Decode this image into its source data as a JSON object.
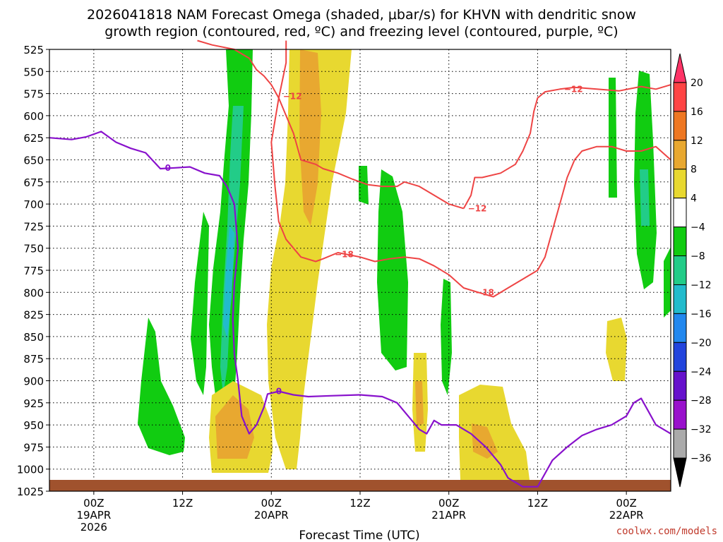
{
  "chart_data": {
    "type": "heatmap",
    "title_line1": "2026041818 NAM Forecast Omega (shaded, μbar/s) for KHVN with dendritic snow",
    "title_line2": "growth region (contoured, red, ºC) and freezing level (contoured, purple, ºC)",
    "xlabel": "Forecast Time (UTC)",
    "credit": "coolwx.com/models",
    "x_range_hours": [
      0,
      84
    ],
    "y_levels_hpa": [
      "525",
      "550",
      "575",
      "600",
      "625",
      "650",
      "675",
      "700",
      "725",
      "750",
      "775",
      "800",
      "825",
      "850",
      "875",
      "900",
      "925",
      "950",
      "975",
      "1000",
      "1025"
    ],
    "x_ticks": [
      {
        "hour": 6,
        "label": "00Z",
        "sub1": "19APR",
        "sub2": "2026"
      },
      {
        "hour": 18,
        "label": "12Z",
        "sub1": "",
        "sub2": ""
      },
      {
        "hour": 30,
        "label": "00Z",
        "sub1": "20APR",
        "sub2": ""
      },
      {
        "hour": 42,
        "label": "12Z",
        "sub1": "",
        "sub2": ""
      },
      {
        "hour": 54,
        "label": "00Z",
        "sub1": "21APR",
        "sub2": ""
      },
      {
        "hour": 66,
        "label": "12Z",
        "sub1": "",
        "sub2": ""
      },
      {
        "hour": 78,
        "label": "00Z",
        "sub1": "22APR",
        "sub2": ""
      }
    ],
    "colorbar": {
      "labels": [
        "20",
        "16",
        "12",
        "8",
        "4",
        "−4",
        "−8",
        "−12",
        "−16",
        "−20",
        "−24",
        "−28",
        "−32",
        "−36"
      ],
      "colors": [
        "#ff3366",
        "#ff4444",
        "#ee7722",
        "#e8a830",
        "#e8d830",
        "#ffffff",
        "#11cc11",
        "#22cc88",
        "#22bbcc",
        "#2288ee",
        "#2244dd",
        "#6611cc",
        "#9911cc",
        "#aaaaaa",
        "#000000"
      ]
    },
    "contour_labels": {
      "snow_growth": [
        "−12",
        "−18",
        "−12",
        "−18",
        "−12"
      ],
      "freezing": [
        "0",
        "0"
      ]
    },
    "contours": {
      "freezing_level": [
        [
          0,
          625
        ],
        [
          3,
          627
        ],
        [
          5,
          624
        ],
        [
          7,
          618
        ],
        [
          9,
          630
        ],
        [
          11,
          637
        ],
        [
          13,
          642
        ],
        [
          15,
          660
        ],
        [
          17,
          659
        ],
        [
          19,
          658
        ],
        [
          21,
          665
        ],
        [
          23,
          668
        ],
        [
          24,
          680
        ],
        [
          25,
          700
        ],
        [
          25.5,
          750
        ],
        [
          25,
          790
        ],
        [
          24.8,
          830
        ],
        [
          25,
          870
        ],
        [
          25.5,
          900
        ],
        [
          26,
          940
        ],
        [
          27,
          960
        ],
        [
          28,
          950
        ],
        [
          29,
          930
        ],
        [
          29.5,
          915
        ],
        [
          31,
          912
        ],
        [
          33,
          916
        ],
        [
          35,
          918
        ],
        [
          38,
          917
        ],
        [
          42,
          916
        ],
        [
          45,
          918
        ],
        [
          47,
          925
        ],
        [
          49,
          945
        ],
        [
          50,
          955
        ],
        [
          51,
          960
        ],
        [
          52,
          945
        ],
        [
          53,
          950
        ],
        [
          55,
          950
        ],
        [
          57,
          960
        ],
        [
          59,
          975
        ],
        [
          61,
          995
        ],
        [
          62,
          1010
        ],
        [
          64,
          1020
        ],
        [
          66,
          1020
        ],
        [
          67,
          1005
        ],
        [
          68,
          990
        ],
        [
          70,
          975
        ],
        [
          72,
          962
        ],
        [
          74,
          955
        ],
        [
          76,
          950
        ],
        [
          78,
          940
        ],
        [
          79,
          925
        ],
        [
          80,
          920
        ],
        [
          81,
          935
        ],
        [
          82,
          950
        ],
        [
          84,
          960
        ]
      ],
      "snow_growth_m12_upper": [
        [
          20,
          515
        ],
        [
          22,
          520
        ],
        [
          25,
          525
        ],
        [
          27,
          535
        ],
        [
          28,
          548
        ],
        [
          29,
          555
        ],
        [
          30,
          565
        ],
        [
          31,
          580
        ],
        [
          32,
          600
        ],
        [
          33,
          620
        ],
        [
          34,
          650
        ],
        [
          36,
          655
        ],
        [
          37,
          660
        ],
        [
          39,
          665
        ],
        [
          41,
          672
        ],
        [
          43,
          678
        ],
        [
          45,
          680
        ],
        [
          47,
          680
        ],
        [
          48,
          675
        ],
        [
          50,
          680
        ],
        [
          52,
          690
        ],
        [
          54,
          700
        ],
        [
          56,
          705
        ]
      ],
      "snow_growth_m12_lower": [
        [
          32,
          515
        ],
        [
          32,
          540
        ],
        [
          31,
          580
        ],
        [
          30,
          630
        ],
        [
          30.5,
          680
        ],
        [
          31,
          720
        ],
        [
          32,
          740
        ],
        [
          34,
          760
        ],
        [
          36,
          765
        ],
        [
          37,
          762
        ],
        [
          39,
          755
        ],
        [
          42,
          760
        ],
        [
          44,
          765
        ],
        [
          46,
          762
        ],
        [
          48,
          760
        ],
        [
          50,
          762
        ],
        [
          52,
          770
        ],
        [
          54,
          780
        ],
        [
          56,
          795
        ],
        [
          58,
          800
        ],
        [
          60,
          805
        ],
        [
          62,
          795
        ],
        [
          64,
          785
        ],
        [
          66,
          775
        ],
        [
          67,
          760
        ],
        [
          68,
          730
        ],
        [
          69,
          700
        ],
        [
          70,
          670
        ],
        [
          71,
          650
        ],
        [
          72,
          640
        ],
        [
          74,
          635
        ],
        [
          76,
          635
        ],
        [
          78,
          640
        ],
        [
          80,
          640
        ],
        [
          82,
          635
        ],
        [
          84,
          650
        ]
      ],
      "snow_growth_m18": [
        [
          56,
          705
        ],
        [
          57,
          690
        ],
        [
          57.5,
          670
        ],
        [
          58.5,
          670
        ],
        [
          61,
          665
        ],
        [
          63,
          655
        ],
        [
          64,
          640
        ],
        [
          65,
          620
        ],
        [
          65.5,
          595
        ],
        [
          66,
          580
        ],
        [
          67,
          573
        ],
        [
          69,
          570
        ],
        [
          71,
          568
        ],
        [
          74,
          570
        ],
        [
          77,
          572
        ],
        [
          80,
          567
        ],
        [
          82,
          570
        ],
        [
          84,
          565
        ]
      ]
    }
  }
}
